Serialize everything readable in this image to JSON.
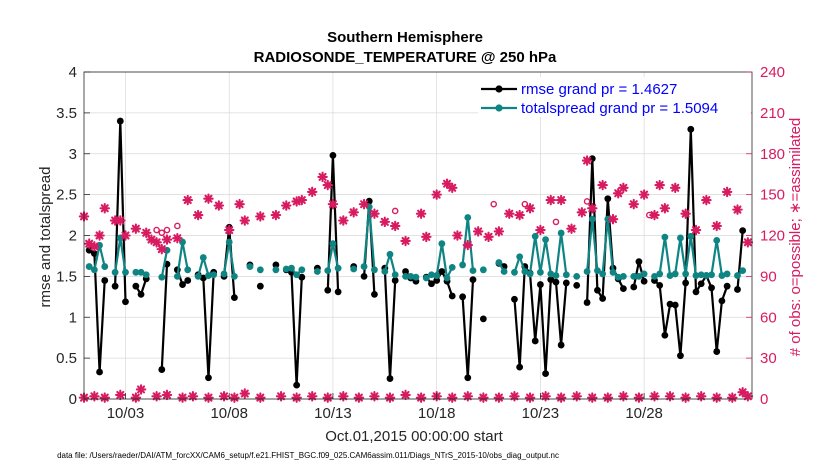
{
  "colors": {
    "rmse": "#000000",
    "spread": "#0f8583",
    "obs": "#d81b60",
    "grid": "#d9d9d9",
    "legend_text": "#0000ff"
  },
  "chart_data": {
    "type": "line",
    "title_line1": "Southern Hemisphere",
    "title_line2": "RADIOSONDE_TEMPERATURE @ 250 hPa",
    "xlabel": "Oct.01,2015 00:00:00 start",
    "ylabel_left": "rmse and totalspread",
    "ylabel_right": "# of obs: o=possible; ∗=assimilated",
    "footnote": "data file: /Users/raeder/DAI/ATM_forcXX/CAM6_setup/f.e21.FHIST_BGC.f09_025.CAM6assim.011/Diags_NTrS_2015-10/obs_diag_output.nc",
    "xlim": [
      1,
      33.2
    ],
    "ylim_left": [
      0,
      4
    ],
    "ylim_right": [
      0,
      240
    ],
    "y_ticks_left": [
      "0",
      "0.5",
      "1",
      "1.5",
      "2",
      "2.5",
      "3",
      "3.5",
      "4"
    ],
    "y_ticks_right": [
      "0",
      "30",
      "60",
      "90",
      "120",
      "150",
      "180",
      "210",
      "240"
    ],
    "x_ticks": [
      {
        "day": 3,
        "label": "10/03"
      },
      {
        "day": 8,
        "label": "10/08"
      },
      {
        "day": 13,
        "label": "10/13"
      },
      {
        "day": 18,
        "label": "10/18"
      },
      {
        "day": 23,
        "label": "10/23"
      },
      {
        "day": 28,
        "label": "10/28"
      }
    ],
    "legend": [
      "rmse grand pr = 1.4627",
      "totalspread grand pr = 1.5094"
    ],
    "series": [
      {
        "name": "rmse",
        "x": [
          1.25,
          1.5,
          1.75,
          2.0,
          2.25,
          2.5,
          2.75,
          3.0,
          3.25,
          3.5,
          3.75,
          4.0,
          4.25,
          4.5,
          4.75,
          5.0,
          5.25,
          5.5,
          5.75,
          6.0,
          6.25,
          6.5,
          6.75,
          7.0,
          7.25,
          7.5,
          7.75,
          8.0,
          8.25,
          8.5,
          8.75,
          9.0,
          9.25,
          9.5,
          9.75,
          10.0,
          10.25,
          10.5,
          10.75,
          11.0,
          11.25,
          11.5,
          11.75,
          12.0,
          12.25,
          12.5,
          12.75,
          13.0,
          13.25,
          13.5,
          13.75,
          14.0,
          14.25,
          14.5,
          14.75,
          15.0,
          15.25,
          15.5,
          15.75,
          16.0,
          16.25,
          16.5,
          16.75,
          17.0,
          17.25,
          17.5,
          17.75,
          18.0,
          18.25,
          18.5,
          18.75,
          19.0,
          19.25,
          19.5,
          19.75,
          20.0,
          20.25,
          20.5,
          20.75,
          21.0,
          21.25,
          21.5,
          21.75,
          22.0,
          22.25,
          22.5,
          22.75,
          23.0,
          23.25,
          23.5,
          23.75,
          24.0,
          24.25,
          24.5,
          24.75,
          25.0,
          25.25,
          25.5,
          25.75,
          26.0,
          26.25,
          26.5,
          26.75,
          27.0,
          27.25,
          27.5,
          27.75,
          28.0,
          28.25,
          28.5,
          28.75,
          29.0,
          29.25,
          29.5,
          29.75,
          30.0,
          30.25,
          30.5,
          30.75,
          31.0,
          31.25,
          31.5,
          31.75,
          32.0,
          32.25,
          32.5,
          32.75,
          33.0
        ],
        "values": [
          1.82,
          1.78,
          0.33,
          1.45,
          null,
          1.38,
          3.4,
          1.19,
          null,
          1.38,
          1.28,
          1.47,
          null,
          null,
          0.36,
          1.65,
          null,
          1.58,
          1.4,
          1.45,
          null,
          1.52,
          1.48,
          0.26,
          1.55,
          null,
          1.5,
          2.1,
          1.24,
          null,
          null,
          1.64,
          null,
          1.38,
          null,
          null,
          1.64,
          null,
          1.58,
          1.55,
          0.17,
          1.49,
          null,
          null,
          1.6,
          null,
          1.33,
          2.98,
          1.31,
          null,
          null,
          1.62,
          null,
          1.5,
          2.42,
          1.28,
          null,
          1.6,
          0.25,
          1.45,
          null,
          1.56,
          1.48,
          1.44,
          null,
          1.49,
          1.41,
          1.45,
          1.56,
          1.44,
          1.26,
          null,
          1.25,
          0.26,
          1.46,
          null,
          0.98,
          null,
          null,
          1.66,
          1.62,
          null,
          1.22,
          0.39,
          1.62,
          1.54,
          0.71,
          1.4,
          0.31,
          1.46,
          1.43,
          0.66,
          1.42,
          null,
          1.39,
          null,
          1.18,
          2.94,
          1.33,
          1.23,
          2.45,
          1.6,
          1.47,
          1.35,
          null,
          1.37,
          1.68,
          1.44,
          null,
          1.45,
          1.39,
          0.78,
          1.16,
          1.15,
          0.53,
          1.42,
          3.3,
          1.31,
          1.41,
          1.51,
          1.36,
          0.58,
          1.2,
          1.38,
          null,
          1.34,
          2.06,
          null
        ],
        "color": "#000000"
      },
      {
        "name": "totalspread",
        "x": [
          1.25,
          1.5,
          1.75,
          2.0,
          2.25,
          2.5,
          2.75,
          3.0,
          3.25,
          3.5,
          3.75,
          4.0,
          4.25,
          4.5,
          4.75,
          5.0,
          5.25,
          5.5,
          5.75,
          6.0,
          6.25,
          6.5,
          6.75,
          7.0,
          7.25,
          7.5,
          7.75,
          8.0,
          8.25,
          8.5,
          8.75,
          9.0,
          9.25,
          9.5,
          9.75,
          10.0,
          10.25,
          10.5,
          10.75,
          11.0,
          11.25,
          11.5,
          11.75,
          12.0,
          12.25,
          12.5,
          12.75,
          13.0,
          13.25,
          13.5,
          13.75,
          14.0,
          14.25,
          14.5,
          14.75,
          15.0,
          15.25,
          15.5,
          15.75,
          16.0,
          16.25,
          16.5,
          16.75,
          17.0,
          17.25,
          17.5,
          17.75,
          18.0,
          18.25,
          18.5,
          18.75,
          19.0,
          19.25,
          19.5,
          19.75,
          20.0,
          20.25,
          20.5,
          20.75,
          21.0,
          21.25,
          21.5,
          21.75,
          22.0,
          22.25,
          22.5,
          22.75,
          23.0,
          23.25,
          23.5,
          23.75,
          24.0,
          24.25,
          24.5,
          24.75,
          25.0,
          25.25,
          25.5,
          25.75,
          26.0,
          26.25,
          26.5,
          26.75,
          27.0,
          27.25,
          27.5,
          27.75,
          28.0,
          28.25,
          28.5,
          28.75,
          29.0,
          29.25,
          29.5,
          29.75,
          30.0,
          30.25,
          30.5,
          30.75,
          31.0,
          31.25,
          31.5,
          31.75,
          32.0,
          32.25,
          32.5,
          32.75,
          33.0
        ],
        "values": [
          1.62,
          1.58,
          1.88,
          1.62,
          null,
          1.55,
          1.97,
          1.55,
          null,
          1.55,
          1.55,
          1.52,
          null,
          null,
          1.49,
          1.82,
          null,
          1.5,
          1.92,
          1.58,
          null,
          1.5,
          1.73,
          1.51,
          1.52,
          null,
          1.53,
          1.92,
          1.5,
          null,
          null,
          1.62,
          null,
          1.58,
          null,
          null,
          1.58,
          null,
          1.59,
          1.6,
          1.52,
          1.58,
          null,
          null,
          1.56,
          null,
          1.57,
          1.9,
          1.6,
          null,
          null,
          1.59,
          null,
          1.62,
          2.35,
          1.58,
          null,
          1.56,
          1.77,
          1.52,
          null,
          1.5,
          1.5,
          1.49,
          null,
          1.48,
          1.52,
          1.51,
          1.9,
          1.48,
          1.61,
          null,
          1.64,
          2.22,
          1.57,
          null,
          1.58,
          null,
          null,
          1.67,
          1.56,
          null,
          1.55,
          1.74,
          1.56,
          1.53,
          1.99,
          1.55,
          1.95,
          1.53,
          1.51,
          2.03,
          1.52,
          null,
          1.5,
          null,
          1.56,
          2.2,
          1.57,
          1.53,
          2.2,
          1.55,
          1.49,
          1.5,
          null,
          1.5,
          1.5,
          1.53,
          null,
          1.5,
          1.53,
          1.98,
          1.51,
          1.53,
          1.97,
          1.53,
          1.99,
          1.51,
          1.52,
          1.51,
          1.52,
          1.94,
          1.51,
          1.53,
          null,
          1.51,
          1.57,
          null
        ],
        "color": "#0f8583"
      },
      {
        "name": "obs_assimilated",
        "x": [
          1.0,
          1.25,
          1.5,
          1.75,
          2.0,
          2.5,
          2.75,
          3.0,
          3.5,
          4.0,
          4.25,
          4.5,
          4.75,
          5.0,
          5.5,
          6.0,
          6.5,
          7.0,
          7.5,
          8.0,
          8.5,
          8.75,
          9.5,
          10.25,
          10.75,
          11.25,
          11.5,
          12.0,
          12.5,
          12.75,
          13.0,
          13.5,
          14.0,
          14.5,
          15.0,
          15.5,
          16.0,
          16.5,
          17.25,
          17.5,
          18.0,
          18.5,
          18.75,
          19.0,
          19.5,
          20.0,
          20.5,
          21.0,
          21.5,
          22.0,
          22.5,
          23.0,
          23.5,
          24.0,
          24.5,
          25.0,
          25.25,
          25.5,
          26.0,
          26.5,
          26.75,
          27.0,
          27.5,
          28.0,
          28.5,
          28.75,
          29.0,
          29.5,
          30.0,
          30.5,
          31.0,
          31.5,
          32.0,
          32.5,
          33.0
        ],
        "values": [
          134,
          114,
          112,
          120,
          140,
          131,
          131,
          120,
          125,
          122,
          117,
          115,
          110,
          117,
          118,
          146,
          135,
          147,
          142,
          124,
          143,
          131,
          134,
          135,
          142,
          145,
          146,
          152,
          163,
          157,
          143,
          131,
          137,
          143,
          136,
          130,
          127,
          116,
          136,
          119,
          150,
          158,
          155,
          120,
          113,
          123,
          119,
          123,
          136,
          135,
          140,
          124,
          146,
          146,
          125,
          137,
          175,
          140,
          157,
          132,
          151,
          155,
          143,
          150,
          135,
          157,
          140,
          155,
          136,
          124,
          146,
          127,
          152,
          139,
          115
        ],
        "color": "#d81b60"
      },
      {
        "name": "obs_possible",
        "x": [
          4.5,
          4.75,
          5.0,
          5.5,
          16.0,
          20.75,
          22.25,
          23.75,
          25.25,
          28.25
        ],
        "values": [
          124,
          122,
          124,
          127,
          138,
          143,
          143,
          130,
          145,
          135
        ],
        "color": "#d81b60"
      },
      {
        "name": "obs_assimilated_low",
        "x": [
          1.0,
          1.5,
          2.0,
          2.75,
          3.5,
          3.75,
          4.5,
          5.0,
          5.75,
          6.25,
          7.0,
          7.75,
          8.25,
          8.75,
          9.5,
          10.5,
          11.25,
          12.0,
          12.75,
          13.5,
          14.25,
          15.0,
          15.75,
          16.5,
          17.25,
          18.0,
          18.75,
          19.5,
          20.25,
          21.0,
          21.75,
          22.5,
          23.25,
          24.0,
          24.75,
          25.5,
          26.25,
          27.0,
          27.75,
          28.5,
          29.25,
          30.0,
          30.75,
          31.5,
          32.25,
          32.75,
          33.0
        ],
        "values": [
          1,
          2,
          1,
          3,
          1,
          7,
          2,
          3,
          1,
          2,
          1,
          2,
          1,
          4,
          1,
          2,
          1,
          2,
          1,
          2,
          1,
          2,
          1,
          3,
          1,
          2,
          1,
          2,
          1,
          1,
          2,
          1,
          2,
          1,
          2,
          1,
          1,
          2,
          1,
          2,
          2,
          1,
          2,
          1,
          1,
          5,
          2
        ],
        "color": "#d81b60"
      }
    ]
  }
}
